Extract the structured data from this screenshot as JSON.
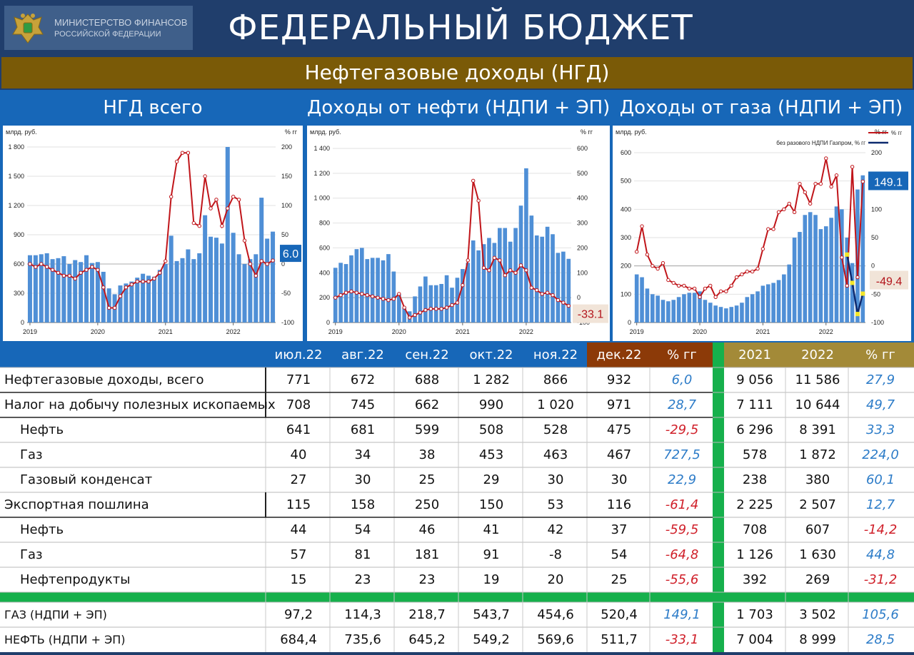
{
  "header": {
    "logo_line1": "МИНИСТЕРСТВО ФИНАНСОВ",
    "logo_line2": "РОССИЙСКОЙ ФЕДЕРАЦИИ",
    "title": "ФЕДЕРАЛЬНЫЙ БЮДЖЕТ",
    "subtitle": "Нефтегазовые доходы (НГД)"
  },
  "colors": {
    "navy": "#203e6c",
    "gold": "#7a5a07",
    "blue": "#1767b8",
    "bar": "#4f8fd6",
    "line": "#c0151a",
    "navy_line": "#0d2a6e",
    "green": "#16b04c",
    "brown": "#8c3a08",
    "khaki": "#a38a38"
  },
  "chart_titles": [
    "НГД всего",
    "Доходы от нефти (НДПИ + ЭП)",
    "Доходы от газа (НДПИ + ЭП)"
  ],
  "chart_data": [
    {
      "type": "bar+line",
      "title": "НГД всего",
      "ylabel": "млрд. руб.",
      "y2label": "% гг",
      "ylim": [
        0,
        1800
      ],
      "yticks": [
        "0",
        "300",
        "600",
        "900",
        "1 200",
        "1 500",
        "1 800"
      ],
      "y2lim": [
        -100,
        200
      ],
      "y2ticks": [
        "-100",
        "-50",
        "0",
        "50",
        "100",
        "150",
        "200"
      ],
      "xticks": [
        "2019",
        "2020",
        "2021",
        "2022"
      ],
      "bars": [
        690,
        690,
        700,
        710,
        650,
        660,
        680,
        600,
        640,
        620,
        690,
        610,
        620,
        520,
        350,
        290,
        380,
        400,
        420,
        460,
        500,
        480,
        470,
        540,
        600,
        890,
        630,
        660,
        750,
        650,
        710,
        1100,
        880,
        870,
        810,
        1800,
        920,
        700,
        600,
        650,
        700,
        1280,
        860,
        932
      ],
      "line": [
        0,
        -5,
        0,
        -5,
        -10,
        -15,
        -20,
        -20,
        -25,
        -15,
        -10,
        -5,
        -10,
        -40,
        -75,
        -75,
        -55,
        -40,
        -35,
        -30,
        -30,
        -30,
        -25,
        -15,
        5,
        115,
        175,
        190,
        190,
        70,
        65,
        150,
        95,
        110,
        65,
        95,
        115,
        110,
        40,
        0,
        -20,
        5,
        0,
        6
      ],
      "badge": "6.0"
    },
    {
      "type": "bar+line",
      "title": "Доходы от нефти (НДПИ + ЭП)",
      "ylabel": "млрд. руб.",
      "y2label": "% гг",
      "ylim": [
        0,
        1400
      ],
      "yticks": [
        "0",
        "200",
        "400",
        "600",
        "800",
        "1 000",
        "1 200",
        "1 400"
      ],
      "y2lim": [
        -100,
        600
      ],
      "y2ticks": [
        "-100",
        "0",
        "100",
        "200",
        "300",
        "400",
        "500",
        "600"
      ],
      "xticks": [
        "2019",
        "2020",
        "2021",
        "2022"
      ],
      "bars": [
        440,
        480,
        470,
        540,
        590,
        600,
        510,
        520,
        520,
        500,
        550,
        410,
        230,
        120,
        90,
        210,
        290,
        370,
        300,
        300,
        310,
        380,
        280,
        360,
        430,
        480,
        660,
        580,
        630,
        680,
        640,
        760,
        760,
        650,
        760,
        940,
        1240,
        860,
        700,
        690,
        770,
        710,
        560,
        570,
        512
      ],
      "line": [
        0,
        10,
        20,
        25,
        20,
        15,
        10,
        5,
        0,
        -5,
        -10,
        -5,
        15,
        -40,
        -80,
        -70,
        -60,
        -50,
        -45,
        -45,
        -45,
        -40,
        -30,
        -20,
        50,
        150,
        470,
        390,
        120,
        110,
        160,
        150,
        90,
        110,
        100,
        130,
        110,
        40,
        30,
        15,
        20,
        10,
        -10,
        -20,
        -33
      ],
      "badge": "-33.1"
    },
    {
      "type": "bar+line",
      "title": "Доходы от газа (НДПИ + ЭП)",
      "ylabel": "млрд. руб.",
      "y2label": "% гг",
      "legend": [
        "% гг",
        "без разового НДПИ Газпром, % гг"
      ],
      "ylim": [
        0,
        600
      ],
      "yticks": [
        "0",
        "100",
        "200",
        "300",
        "400",
        "500",
        "600"
      ],
      "y2lim": [
        -100,
        200
      ],
      "y2ticks": [
        "-100",
        "-50",
        "0",
        "50",
        "100",
        "150",
        "200"
      ],
      "xticks": [
        "2019",
        "2020",
        "2021",
        "2022"
      ],
      "bars": [
        170,
        160,
        120,
        100,
        95,
        80,
        75,
        80,
        90,
        100,
        105,
        105,
        110,
        80,
        70,
        60,
        55,
        50,
        55,
        60,
        70,
        90,
        100,
        110,
        130,
        135,
        140,
        150,
        170,
        205,
        300,
        320,
        380,
        390,
        380,
        330,
        340,
        370,
        410,
        400,
        300,
        210,
        470,
        520
      ],
      "line": [
        25,
        70,
        20,
        0,
        -5,
        5,
        -25,
        -30,
        -35,
        -35,
        -40,
        -40,
        -55,
        -40,
        -35,
        -55,
        -45,
        -45,
        -35,
        -20,
        -15,
        -10,
        -10,
        -5,
        30,
        65,
        65,
        95,
        100,
        110,
        95,
        145,
        130,
        110,
        145,
        145,
        190,
        140,
        160,
        15,
        -35,
        175,
        -20,
        149
      ],
      "line2_x": [
        40,
        41,
        42,
        43
      ],
      "line2": [
        20,
        -30,
        -85,
        -49
      ],
      "badge1": "149.1",
      "badge2": "-49.4"
    }
  ],
  "table": {
    "headers": [
      "июл.22",
      "авг.22",
      "сен.22",
      "окт.22",
      "ноя.22",
      "дек.22",
      "% гг",
      "2021",
      "2022",
      "% гг"
    ],
    "rows": [
      {
        "label": "Нефтегазовые доходы, всего",
        "indent": false,
        "vals": [
          "771",
          "672",
          "688",
          "1 282",
          "866",
          "932",
          "6,0",
          "9 056",
          "11 586",
          "27,9"
        ]
      },
      {
        "label": "Налог на добычу полезных ископаемых",
        "indent": false,
        "vals": [
          "708",
          "745",
          "662",
          "990",
          "1 020",
          "971",
          "28,7",
          "7 111",
          "10 644",
          "49,7"
        ]
      },
      {
        "label": "Нефть",
        "indent": true,
        "vals": [
          "641",
          "681",
          "599",
          "508",
          "528",
          "475",
          "-29,5",
          "6 296",
          "8 391",
          "33,3"
        ]
      },
      {
        "label": "Газ",
        "indent": true,
        "vals": [
          "40",
          "34",
          "38",
          "453",
          "463",
          "467",
          "727,5",
          "578",
          "1 872",
          "224,0"
        ]
      },
      {
        "label": "Газовый конденсат",
        "indent": true,
        "vals": [
          "27",
          "30",
          "25",
          "29",
          "30",
          "30",
          "22,9",
          "238",
          "380",
          "60,1"
        ]
      },
      {
        "label": "Экспортная пошлина",
        "indent": false,
        "vals": [
          "115",
          "158",
          "250",
          "150",
          "53",
          "116",
          "-61,4",
          "2 225",
          "2 507",
          "12,7"
        ]
      },
      {
        "label": "Нефть",
        "indent": true,
        "vals": [
          "44",
          "54",
          "46",
          "41",
          "42",
          "37",
          "-59,5",
          "708",
          "607",
          "-14,2"
        ]
      },
      {
        "label": "Газ",
        "indent": true,
        "vals": [
          "57",
          "81",
          "181",
          "91",
          "-8",
          "54",
          "-64,8",
          "1 126",
          "1 630",
          "44,8"
        ]
      },
      {
        "label": "Нефтепродукты",
        "indent": true,
        "vals": [
          "15",
          "23",
          "23",
          "19",
          "20",
          "25",
          "-55,6",
          "392",
          "269",
          "-31,2"
        ]
      }
    ],
    "bottom_rows": [
      {
        "label": "ГАЗ (НДПИ + ЭП)",
        "vals": [
          "97,2",
          "114,3",
          "218,7",
          "543,7",
          "454,6",
          "520,4",
          "149,1",
          "1 703",
          "3 502",
          "105,6"
        ]
      },
      {
        "label": "НЕФТЬ (НДПИ + ЭП)",
        "vals": [
          "684,4",
          "735,6",
          "645,2",
          "549,2",
          "569,6",
          "511,7",
          "-33,1",
          "7 004",
          "8 999",
          "28,5"
        ]
      }
    ]
  }
}
